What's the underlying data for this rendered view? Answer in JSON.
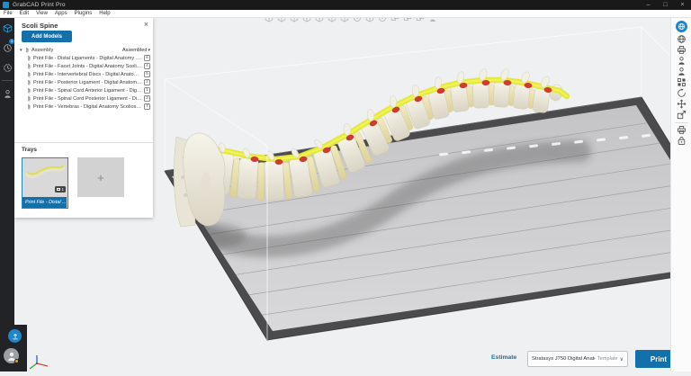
{
  "window": {
    "title": "GrabCAD Print Pro",
    "minimize": "–",
    "maximize": "□",
    "close": "×"
  },
  "menu": {
    "items": [
      "File",
      "Edit",
      "View",
      "Apps",
      "Plugins",
      "Help"
    ]
  },
  "left_rail": {
    "items": [
      {
        "name": "prepare",
        "icon": "cube3d",
        "active": true
      },
      {
        "name": "schedule",
        "icon": "clock",
        "badge": "3"
      },
      {
        "name": "history",
        "icon": "clock-dashed"
      },
      {
        "name": "divider"
      },
      {
        "name": "jobs",
        "icon": "person"
      }
    ],
    "footer": [
      {
        "name": "sync",
        "icon": "sync"
      },
      {
        "name": "account",
        "icon": "avatar",
        "notification": true
      }
    ]
  },
  "panel": {
    "title": "Scoli Spine",
    "close_label": "×",
    "add_models_label": "Add Models",
    "caret_down": "▾",
    "assembly_label": "Assembly",
    "assembly_state": "Assembled",
    "files": [
      {
        "label": "Print File - Distal Ligaments - Digital Anatomy Scoli...",
        "badge": "6"
      },
      {
        "label": "Print File - Facet Joints - Digital Anatomy Scoliosis.stl",
        "badge": "4"
      },
      {
        "label": "Print File - Intervertebral Discs - Digital Anatomy Sc...",
        "badge": "5"
      },
      {
        "label": "Print File - Posterior Ligament - Digital Anatomy Sc...",
        "badge": "2"
      },
      {
        "label": "Print File - Spinal Cord Anterior Ligament - Digital ...",
        "badge": "1"
      },
      {
        "label": "Print File - Spinal Cord Posterior Ligament - Digital ...",
        "badge": "3"
      },
      {
        "label": "Print File - Vertebras - Digital Anatomy Scoliosis.stl",
        "badge": "7"
      }
    ],
    "trays_label": "Trays",
    "tray_caption": "Print File - Distal ...",
    "tray_badge": "1",
    "add_tray_label": "+"
  },
  "viewport_toolbar": {
    "icons": [
      "view-home",
      "view-front",
      "view-back",
      "view-left",
      "view-right",
      "view-top",
      "view-bottom",
      "view-sphere",
      "view-section",
      "view-circle",
      "duplicate-model",
      "mirror-model",
      "arrange-models",
      "walkthrough"
    ]
  },
  "right_rail": {
    "items": [
      {
        "name": "orient-sphere",
        "icon": "globe-white",
        "active": true
      },
      {
        "name": "analyze-globe",
        "icon": "globe"
      },
      {
        "name": "printer-settings",
        "icon": "printer"
      },
      {
        "name": "supports-tool",
        "icon": "person"
      },
      {
        "name": "anatomy-figure",
        "icon": "person"
      },
      {
        "name": "arrange-grid",
        "icon": "grid"
      },
      {
        "name": "rotate-tool",
        "icon": "rotate"
      },
      {
        "name": "move-tool",
        "icon": "move"
      },
      {
        "name": "scale-tool",
        "icon": "scale"
      },
      {
        "name": "divider"
      },
      {
        "name": "tray-printer",
        "icon": "printer"
      },
      {
        "name": "material-bag",
        "icon": "bag"
      }
    ]
  },
  "bottom_bar": {
    "estimate_label": "Estimate",
    "printer_value": "Stratasys J750 Digital Anato...",
    "template_label": "- Template",
    "chevron": "∨",
    "print_label": "Print"
  },
  "colors": {
    "accent_blue": "#1470ab",
    "rail_active_blue": "#2ba1dd",
    "band_yellow": "#e4e73c",
    "disc_red": "#d6392f",
    "bone_ivory": "#f0ede2",
    "tray_gray": "#cfcfd1"
  }
}
